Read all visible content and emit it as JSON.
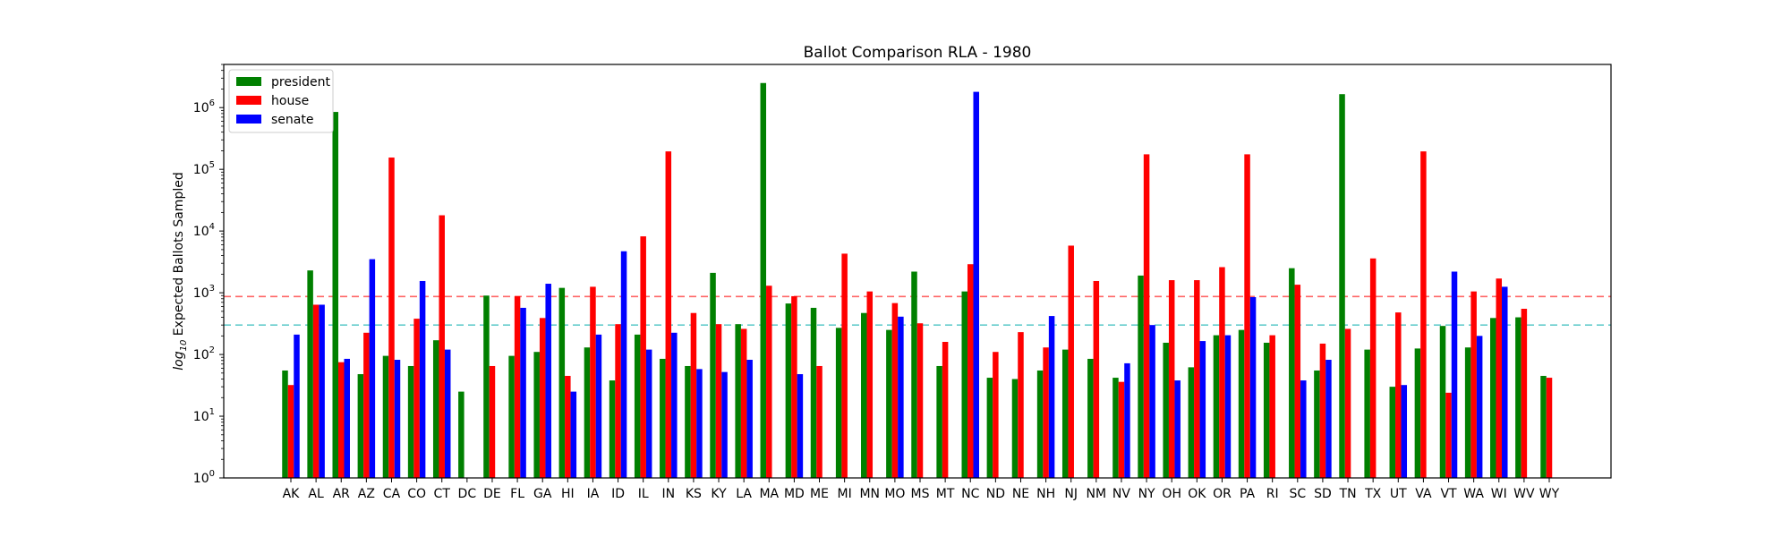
{
  "chart_data": {
    "type": "bar",
    "title": "Ballot Comparison RLA - 1980",
    "xlabel": "",
    "ylabel_prefix": "log",
    "ylabel_sub": "10",
    "ylabel_rest": " Expected Ballots Sampled",
    "yscale": "log",
    "ylim": [
      1,
      5000000
    ],
    "yticks": [
      {
        "value": 1,
        "label_base": "10",
        "label_exp": "0"
      },
      {
        "value": 10,
        "label_base": "10",
        "label_exp": "1"
      },
      {
        "value": 100,
        "label_base": "10",
        "label_exp": "2"
      },
      {
        "value": 1000,
        "label_base": "10",
        "label_exp": "3"
      },
      {
        "value": 10000,
        "label_base": "10",
        "label_exp": "4"
      },
      {
        "value": 100000,
        "label_base": "10",
        "label_exp": "5"
      },
      {
        "value": 1000000,
        "label_base": "10",
        "label_exp": "6"
      }
    ],
    "categories": [
      "AK",
      "AL",
      "AR",
      "AZ",
      "CA",
      "CO",
      "CT",
      "DC",
      "DE",
      "FL",
      "GA",
      "HI",
      "IA",
      "ID",
      "IL",
      "IN",
      "KS",
      "KY",
      "LA",
      "MA",
      "MD",
      "ME",
      "MI",
      "MN",
      "MO",
      "MS",
      "MT",
      "NC",
      "ND",
      "NE",
      "NH",
      "NJ",
      "NM",
      "NV",
      "NY",
      "OH",
      "OK",
      "OR",
      "PA",
      "RI",
      "SC",
      "SD",
      "TN",
      "TX",
      "UT",
      "VA",
      "VT",
      "WA",
      "WI",
      "WV",
      "WY"
    ],
    "series": [
      {
        "name": "president",
        "color": "#008000",
        "values": [
          55,
          2300,
          850000,
          48,
          95,
          65,
          170,
          25,
          900,
          95,
          110,
          1200,
          130,
          38,
          210,
          85,
          65,
          2100,
          310,
          2500000,
          670,
          570,
          270,
          470,
          250,
          2200,
          65,
          1050,
          42,
          40,
          55,
          120,
          85,
          42,
          1900,
          155,
          62,
          205,
          250,
          155,
          2500,
          55,
          1650000,
          120,
          30,
          125,
          290,
          130,
          390,
          400,
          45
        ]
      },
      {
        "name": "house",
        "color": "#ff0000",
        "values": [
          32,
          640,
          75,
          225,
          155000,
          380,
          18000,
          null,
          65,
          880,
          390,
          45,
          1250,
          310,
          8200,
          195000,
          470,
          310,
          260,
          1300,
          880,
          65,
          4300,
          1050,
          680,
          320,
          160,
          2900,
          110,
          230,
          130,
          5800,
          1550,
          36,
          175000,
          1600,
          1600,
          2600,
          175000,
          205,
          1350,
          150,
          260,
          3600,
          480,
          195000,
          24,
          1050,
          1700,
          550,
          42
        ]
      },
      {
        "name": "senate",
        "color": "#0000ff",
        "values": [
          210,
          640,
          85,
          3500,
          82,
          1550,
          120,
          null,
          null,
          570,
          1400,
          25,
          210,
          4700,
          120,
          225,
          58,
          52,
          82,
          null,
          48,
          null,
          null,
          null,
          410,
          null,
          null,
          1800000,
          null,
          null,
          420,
          null,
          null,
          72,
          300,
          38,
          165,
          205,
          850,
          null,
          38,
          82,
          null,
          null,
          32,
          null,
          2200,
          200,
          1250,
          null,
          null
        ]
      }
    ],
    "hlines": [
      {
        "value": 870,
        "color": "#ff6666",
        "style": "dashed"
      },
      {
        "value": 300,
        "color": "#66cccc",
        "style": "dashed"
      }
    ],
    "legend_position": "upper-left",
    "grid": false
  }
}
